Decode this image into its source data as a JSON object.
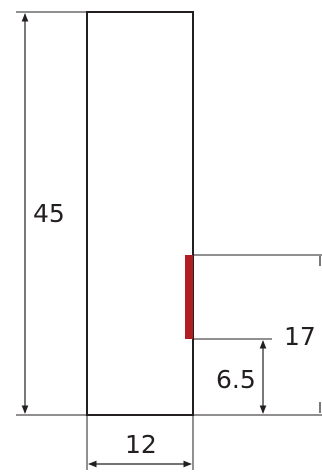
{
  "dimensions": {
    "height": "45",
    "width": "12",
    "marker_offset": "6.5",
    "marker_top": "17"
  },
  "colors": {
    "outline": "#231f20",
    "marker": "#b01e24",
    "background": "#ffffff"
  }
}
